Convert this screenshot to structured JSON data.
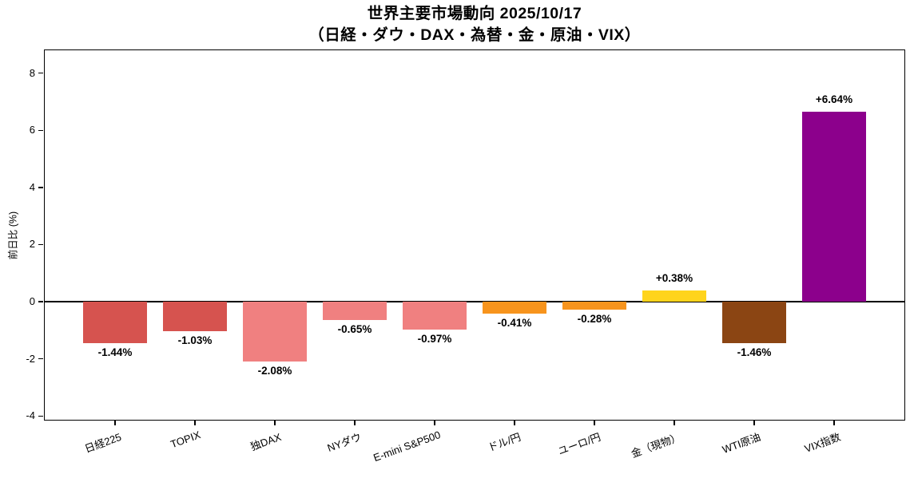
{
  "title": {
    "line1": "世界主要市場動向 2025/10/17",
    "line2": "（日経・ダウ・DAX・為替・金・原油・VIX）"
  },
  "chart_data": {
    "type": "bar",
    "title": "世界主要市場動向 2025/10/17（日経・ダウ・DAX・為替・金・原油・VIX）",
    "categories": [
      "日経225",
      "TOPIX",
      "独DAX",
      "NYダウ",
      "E-mini S&P500",
      "ドル/円",
      "ユーロ/円",
      "金（現物）",
      "WTI原油",
      "VIX指数"
    ],
    "values": [
      -1.44,
      -1.03,
      -2.08,
      -0.65,
      -0.97,
      -0.41,
      -0.28,
      0.38,
      -1.46,
      6.64
    ],
    "bar_labels": [
      "-1.44%",
      "-1.03%",
      "-2.08%",
      "-0.65%",
      "-0.97%",
      "-0.41%",
      "-0.28%",
      "+0.38%",
      "-1.46%",
      "+6.64%"
    ],
    "colors": [
      "#d6534f",
      "#d6534f",
      "#f08080",
      "#f08080",
      "#f08080",
      "#f7941d",
      "#f7941d",
      "#ffd41c",
      "#8b4513",
      "#8c008c"
    ],
    "xlabel": "",
    "ylabel": "前日比 (%)",
    "yticks": [
      8,
      6,
      4,
      2,
      0,
      -2,
      -4
    ],
    "ylim": [
      -4.16,
      8.83
    ],
    "zero_line": true,
    "grid": false,
    "legend": "none"
  }
}
